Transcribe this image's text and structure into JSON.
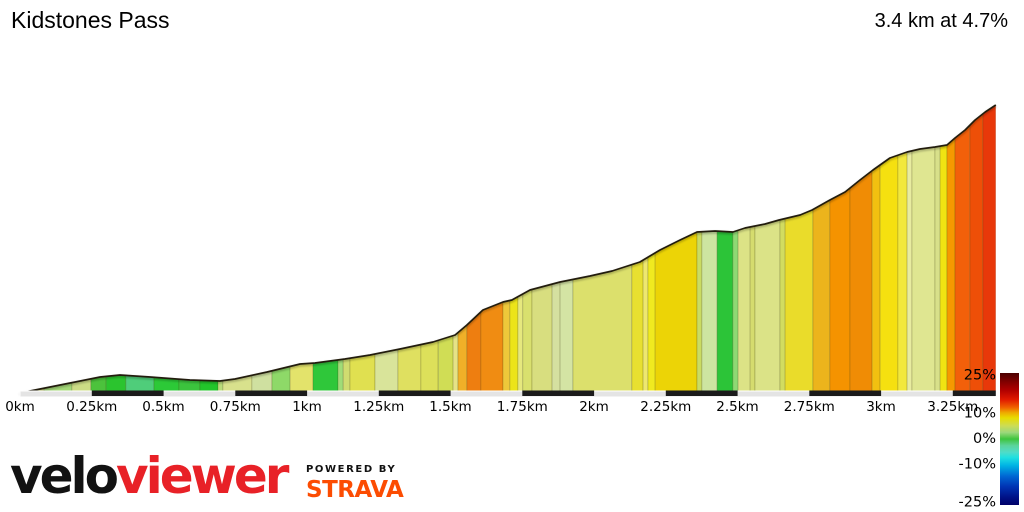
{
  "header": {
    "title": "Kidstones Pass",
    "summary": "3.4 km at 4.7%"
  },
  "footer": {
    "logo_black": "velo",
    "logo_red": "viewer",
    "powered_by": "POWERED BY",
    "strava": "STRAVA"
  },
  "colors": {
    "outline": "#241f10",
    "baseline_gray": "#e4e4e4",
    "scale_dark": "#1b1b1b",
    "viewer_red": "#e82127",
    "strava_orange": "#fc4c02",
    "text": "#000000"
  },
  "chart_data": {
    "type": "area",
    "title": "Kidstones Pass",
    "subtitle": "3.4 km at 4.7%",
    "total_km": 3.4,
    "avg_gradient_pct": 4.7,
    "x_range_km": [
      0,
      3.4
    ],
    "x_unit": "km",
    "y_axis": "elevation (no numeric scale shown); profile heights in canvas px above baseline",
    "grid": false,
    "legend_position": "bottom-right vertical color bar (gradient %)",
    "x_ticks": [
      {
        "km": 0.0,
        "label": "0km"
      },
      {
        "km": 0.25,
        "label": "0.25km"
      },
      {
        "km": 0.5,
        "label": "0.5km"
      },
      {
        "km": 0.75,
        "label": "0.75km"
      },
      {
        "km": 1.0,
        "label": "1km"
      },
      {
        "km": 1.25,
        "label": "1.25km"
      },
      {
        "km": 1.5,
        "label": "1.5km"
      },
      {
        "km": 1.75,
        "label": "1.75km"
      },
      {
        "km": 2.0,
        "label": "2km"
      },
      {
        "km": 2.25,
        "label": "2.25km"
      },
      {
        "km": 2.5,
        "label": "2.5km"
      },
      {
        "km": 2.75,
        "label": "2.75km"
      },
      {
        "km": 3.0,
        "label": "3km"
      },
      {
        "km": 3.25,
        "label": "3.25km"
      }
    ],
    "scale_bar_dark_km": [
      [
        0.25,
        0.5
      ],
      [
        0.75,
        1.0
      ],
      [
        1.25,
        1.5
      ],
      [
        1.75,
        2.0
      ],
      [
        2.25,
        2.5
      ],
      [
        2.75,
        3.0
      ],
      [
        3.25,
        3.4
      ]
    ],
    "profile": [
      [
        0.0,
        0
      ],
      [
        0.105,
        6
      ],
      [
        0.279,
        16
      ],
      [
        0.348,
        18
      ],
      [
        0.453,
        16
      ],
      [
        0.592,
        13
      ],
      [
        0.697,
        12
      ],
      [
        0.749,
        14
      ],
      [
        0.861,
        21
      ],
      [
        0.976,
        29
      ],
      [
        1.028,
        30
      ],
      [
        1.132,
        34
      ],
      [
        1.22,
        38
      ],
      [
        1.324,
        44
      ],
      [
        1.439,
        51
      ],
      [
        1.516,
        58
      ],
      [
        1.557,
        68
      ],
      [
        1.613,
        83
      ],
      [
        1.683,
        91
      ],
      [
        1.714,
        93
      ],
      [
        1.777,
        103
      ],
      [
        1.882,
        111
      ],
      [
        1.986,
        117
      ],
      [
        2.063,
        122
      ],
      [
        2.16,
        131
      ],
      [
        2.23,
        143
      ],
      [
        2.3,
        153
      ],
      [
        2.359,
        161
      ],
      [
        2.422,
        162
      ],
      [
        2.484,
        161
      ],
      [
        2.526,
        165
      ],
      [
        2.596,
        169
      ],
      [
        2.645,
        173
      ],
      [
        2.718,
        178
      ],
      [
        2.76,
        183
      ],
      [
        2.822,
        193
      ],
      [
        2.875,
        201
      ],
      [
        2.927,
        213
      ],
      [
        2.972,
        223
      ],
      [
        3.031,
        235
      ],
      [
        3.091,
        241
      ],
      [
        3.136,
        244
      ],
      [
        3.188,
        246
      ],
      [
        3.23,
        248
      ],
      [
        3.258,
        255
      ],
      [
        3.293,
        263
      ],
      [
        3.328,
        273
      ],
      [
        3.363,
        281
      ],
      [
        3.4,
        288
      ]
    ],
    "gradient_segments": [
      {
        "from_km": 0.0,
        "to_km": 0.084,
        "color": "#d6dc7e"
      },
      {
        "from_km": 0.084,
        "to_km": 0.181,
        "color": "#a4d977"
      },
      {
        "from_km": 0.181,
        "to_km": 0.247,
        "color": "#ccdc85"
      },
      {
        "from_km": 0.247,
        "to_km": 0.3,
        "color": "#4cc23c"
      },
      {
        "from_km": 0.3,
        "to_km": 0.369,
        "color": "#2bc42e"
      },
      {
        "from_km": 0.369,
        "to_km": 0.467,
        "color": "#4fcd7a"
      },
      {
        "from_km": 0.467,
        "to_km": 0.554,
        "color": "#2cc937"
      },
      {
        "from_km": 0.554,
        "to_km": 0.627,
        "color": "#3bc33d"
      },
      {
        "from_km": 0.627,
        "to_km": 0.69,
        "color": "#22c52a"
      },
      {
        "from_km": 0.69,
        "to_km": 0.707,
        "color": "#b9dc7a"
      },
      {
        "from_km": 0.707,
        "to_km": 0.808,
        "color": "#d8e18c"
      },
      {
        "from_km": 0.808,
        "to_km": 0.878,
        "color": "#cfe0a0"
      },
      {
        "from_km": 0.878,
        "to_km": 0.941,
        "color": "#8ed968"
      },
      {
        "from_km": 0.941,
        "to_km": 1.021,
        "color": "#e3e36b"
      },
      {
        "from_km": 1.021,
        "to_km": 1.108,
        "color": "#2fc73a"
      },
      {
        "from_km": 1.108,
        "to_km": 1.126,
        "color": "#a0dc78"
      },
      {
        "from_km": 1.126,
        "to_km": 1.15,
        "color": "#d0dc70"
      },
      {
        "from_km": 1.15,
        "to_km": 1.237,
        "color": "#e0e050"
      },
      {
        "from_km": 1.237,
        "to_km": 1.317,
        "color": "#d9e49a"
      },
      {
        "from_km": 1.317,
        "to_km": 1.397,
        "color": "#dfe060"
      },
      {
        "from_km": 1.397,
        "to_km": 1.457,
        "color": "#dde05a"
      },
      {
        "from_km": 1.457,
        "to_km": 1.509,
        "color": "#d0dd55"
      },
      {
        "from_km": 1.509,
        "to_km": 1.526,
        "color": "#e6e386"
      },
      {
        "from_km": 1.526,
        "to_km": 1.557,
        "color": "#f0b028"
      },
      {
        "from_km": 1.557,
        "to_km": 1.606,
        "color": "#ee7e10"
      },
      {
        "from_km": 1.606,
        "to_km": 1.683,
        "color": "#f08c12"
      },
      {
        "from_km": 1.683,
        "to_km": 1.707,
        "color": "#eec83a"
      },
      {
        "from_km": 1.707,
        "to_km": 1.735,
        "color": "#ece419"
      },
      {
        "from_km": 1.735,
        "to_km": 1.752,
        "color": "#e6e87e"
      },
      {
        "from_km": 1.752,
        "to_km": 1.784,
        "color": "#d9e06e"
      },
      {
        "from_km": 1.784,
        "to_km": 1.854,
        "color": "#d8de7f"
      },
      {
        "from_km": 1.854,
        "to_km": 1.882,
        "color": "#d5e0a0"
      },
      {
        "from_km": 1.882,
        "to_km": 1.927,
        "color": "#d4e4a4"
      },
      {
        "from_km": 1.927,
        "to_km": 2.132,
        "color": "#dce06c"
      },
      {
        "from_km": 2.132,
        "to_km": 2.171,
        "color": "#e8e030"
      },
      {
        "from_km": 2.171,
        "to_km": 2.188,
        "color": "#eee86e"
      },
      {
        "from_km": 2.188,
        "to_km": 2.213,
        "color": "#f0ea20"
      },
      {
        "from_km": 2.213,
        "to_km": 2.359,
        "color": "#ecd406"
      },
      {
        "from_km": 2.359,
        "to_km": 2.376,
        "color": "#cadc62"
      },
      {
        "from_km": 2.376,
        "to_km": 2.429,
        "color": "#cde5a1"
      },
      {
        "from_km": 2.429,
        "to_km": 2.484,
        "color": "#2cc438"
      },
      {
        "from_km": 2.484,
        "to_km": 2.502,
        "color": "#8ed973"
      },
      {
        "from_km": 2.502,
        "to_km": 2.544,
        "color": "#dce386"
      },
      {
        "from_km": 2.544,
        "to_km": 2.561,
        "color": "#d5dc6e"
      },
      {
        "from_km": 2.561,
        "to_km": 2.648,
        "color": "#dbe387"
      },
      {
        "from_km": 2.648,
        "to_km": 2.666,
        "color": "#d2dc60"
      },
      {
        "from_km": 2.666,
        "to_km": 2.763,
        "color": "#eadc2a"
      },
      {
        "from_km": 2.763,
        "to_km": 2.822,
        "color": "#ecb41c"
      },
      {
        "from_km": 2.822,
        "to_km": 2.892,
        "color": "#f59300"
      },
      {
        "from_km": 2.892,
        "to_km": 2.969,
        "color": "#f08c05"
      },
      {
        "from_km": 2.969,
        "to_km": 2.997,
        "color": "#f2c010"
      },
      {
        "from_km": 2.997,
        "to_km": 3.059,
        "color": "#f5e010"
      },
      {
        "from_km": 3.059,
        "to_km": 3.091,
        "color": "#f2e83c"
      },
      {
        "from_km": 3.091,
        "to_km": 3.108,
        "color": "#e8eca0"
      },
      {
        "from_km": 3.108,
        "to_km": 3.188,
        "color": "#dfe691"
      },
      {
        "from_km": 3.188,
        "to_km": 3.206,
        "color": "#d8e08a"
      },
      {
        "from_km": 3.206,
        "to_km": 3.23,
        "color": "#f0e312"
      },
      {
        "from_km": 3.23,
        "to_km": 3.258,
        "color": "#f59900"
      },
      {
        "from_km": 3.258,
        "to_km": 3.31,
        "color": "#f2600a"
      },
      {
        "from_km": 3.31,
        "to_km": 3.355,
        "color": "#ee4f08"
      },
      {
        "from_km": 3.355,
        "to_km": 3.4,
        "color": "#e8380a"
      }
    ],
    "legend": {
      "ticks": [
        {
          "label": "25%",
          "value": 25
        },
        {
          "label": "10%",
          "value": 10
        },
        {
          "label": "0%",
          "value": 0
        },
        {
          "label": "-10%",
          "value": -10
        },
        {
          "label": "-25%",
          "value": -25
        }
      ],
      "stops": [
        [
          0.0,
          "#4a0000"
        ],
        [
          0.06,
          "#7c0000"
        ],
        [
          0.13,
          "#b00000"
        ],
        [
          0.2,
          "#e01800"
        ],
        [
          0.26,
          "#f06000"
        ],
        [
          0.3,
          "#eeaa00"
        ],
        [
          0.34,
          "#e8dc00"
        ],
        [
          0.4,
          "#ccdc55"
        ],
        [
          0.45,
          "#9cd87c"
        ],
        [
          0.5,
          "#3ec43e"
        ],
        [
          0.55,
          "#5cd49c"
        ],
        [
          0.6,
          "#50dcc8"
        ],
        [
          0.64,
          "#20e0e0"
        ],
        [
          0.7,
          "#00b4e4"
        ],
        [
          0.78,
          "#0068d4"
        ],
        [
          0.86,
          "#0034b4"
        ],
        [
          0.94,
          "#001288"
        ],
        [
          1.0,
          "#000068"
        ]
      ]
    }
  }
}
